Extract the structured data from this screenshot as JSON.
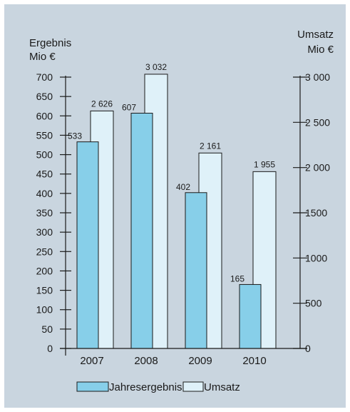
{
  "chart_data": {
    "type": "bar",
    "categories": [
      "2007",
      "2008",
      "2009",
      "2010"
    ],
    "series": [
      {
        "name": "Jahresergebnis",
        "axis": "left",
        "values": [
          533,
          607,
          402,
          165
        ],
        "value_labels": [
          "533",
          "607",
          "402",
          "165"
        ],
        "color": "#87cfe9"
      },
      {
        "name": "Umsatz",
        "axis": "right",
        "values": [
          2626,
          3032,
          2161,
          1955
        ],
        "value_labels": [
          "2 626",
          "3 032",
          "2 161",
          "1 955"
        ],
        "color": "#dff1f9"
      }
    ],
    "y_left": {
      "label_line1": "Ergebnis",
      "label_line2": "Mio €",
      "ylim": [
        0,
        700
      ],
      "ticks": [
        0,
        50,
        100,
        150,
        200,
        250,
        300,
        350,
        400,
        450,
        500,
        550,
        600,
        650,
        700
      ],
      "tick_labels": [
        "0",
        "50",
        "100",
        "150",
        "200",
        "250",
        "300",
        "350",
        "400",
        "450",
        "500",
        "550",
        "600",
        "650",
        "700"
      ]
    },
    "y_right": {
      "label_line1": "Umsatz",
      "label_line2": "Mio €",
      "ylim": [
        0,
        3000
      ],
      "ticks": [
        0,
        500,
        1000,
        1500,
        2000,
        2500,
        3000
      ],
      "tick_labels": [
        "0",
        "500",
        "1000",
        "1500",
        "2 000",
        "2 500",
        "3 000"
      ]
    },
    "legend": {
      "position": "bottom-center",
      "entries": [
        "Jahresergebnis",
        "Umsatz"
      ]
    },
    "grid": false
  },
  "colors": {
    "background": "#c9d5df",
    "axis": "#1a1a1a",
    "bar_stroke": "#1a1a1a"
  }
}
